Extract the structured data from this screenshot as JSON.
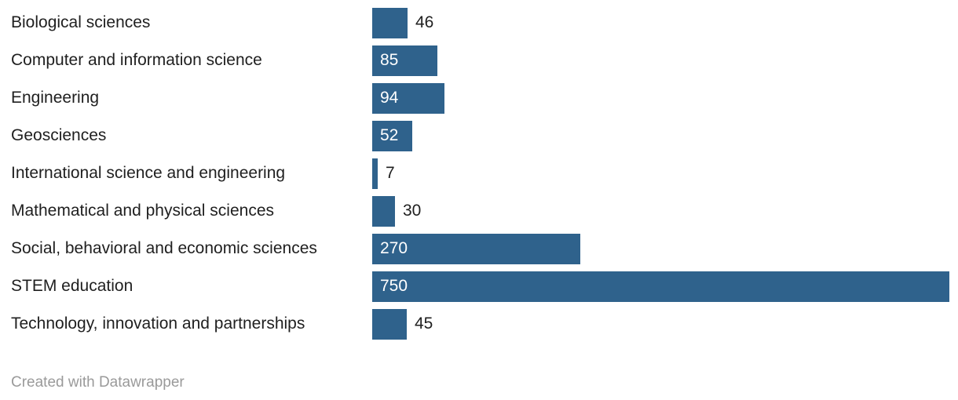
{
  "chart_data": {
    "type": "bar",
    "orientation": "horizontal",
    "title": "",
    "xlabel": "",
    "ylabel": "",
    "xlim": [
      0,
      750
    ],
    "grid": false,
    "legend": false,
    "bar_color": "#2f628c",
    "category_label_color": "#1f1f1f",
    "value_label_inside_color": "#ffffff",
    "value_label_outside_color": "#1f1f1f",
    "categories": [
      "Biological sciences",
      "Computer and information science",
      "Engineering",
      "Geosciences",
      "International science and engineering",
      "Mathematical and physical sciences",
      "Social, behavioral and economic sciences",
      "STEM education",
      "Technology, innovation and partnerships"
    ],
    "values": [
      46,
      85,
      94,
      52,
      7,
      30,
      270,
      750,
      45
    ],
    "rows": [
      {
        "category": "Biological sciences",
        "value": 46,
        "value_label": "46",
        "label_inside": false
      },
      {
        "category": "Computer and information science",
        "value": 85,
        "value_label": "85",
        "label_inside": true
      },
      {
        "category": "Engineering",
        "value": 94,
        "value_label": "94",
        "label_inside": true
      },
      {
        "category": "Geosciences",
        "value": 52,
        "value_label": "52",
        "label_inside": true
      },
      {
        "category": "International science and engineering",
        "value": 7,
        "value_label": "7",
        "label_inside": false
      },
      {
        "category": "Mathematical and physical sciences",
        "value": 30,
        "value_label": "30",
        "label_inside": false
      },
      {
        "category": "Social, behavioral and economic sciences",
        "value": 270,
        "value_label": "270",
        "label_inside": true
      },
      {
        "category": "STEM education",
        "value": 750,
        "value_label": "750",
        "label_inside": true
      },
      {
        "category": "Technology, innovation and partnerships",
        "value": 45,
        "value_label": "45",
        "label_inside": false
      }
    ]
  },
  "footer": {
    "credit_label": "Created with Datawrapper",
    "color": "#9a9a9a"
  }
}
